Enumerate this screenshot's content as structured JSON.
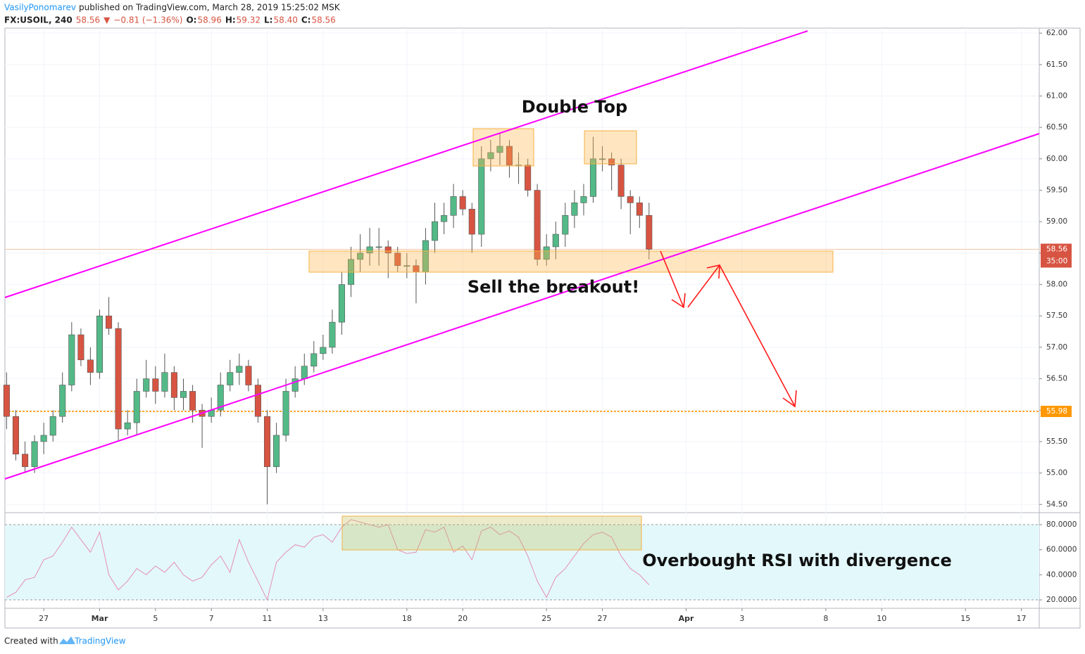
{
  "header": {
    "author": "VasilyPonomarev",
    "published": "published on TradingView.com, March 28, 2019 15:25:02 MSK",
    "quote": [
      "FX:USOIL, 240",
      "58.56",
      "▼",
      "−0.81 (−1.36%)",
      "O:",
      "58.96",
      "H:",
      "59.32",
      "L:",
      "58.40",
      "C:",
      "58.56"
    ]
  },
  "annotations": {
    "double_top": "Double Top",
    "sell": "Sell the breakout!",
    "rsi_note": "Overbought RSI with divergence"
  },
  "footer": {
    "created": "Created with",
    "brand": "TradingView"
  },
  "chart_data": [
    {
      "type": "candlestick",
      "up_color": "#53b987",
      "down_color": "#d75442",
      "xlim": [
        -1.39,
        35.64
      ],
      "ylim": [
        54.38,
        62.08
      ],
      "grid": true,
      "xticks": [
        {
          "value": 0,
          "label": "27"
        },
        {
          "value": 2,
          "label": "Mar"
        },
        {
          "value": 4,
          "label": "5"
        },
        {
          "value": 6,
          "label": "7"
        },
        {
          "value": 8,
          "label": "11"
        },
        {
          "value": 10,
          "label": "13"
        },
        {
          "value": 13,
          "label": "18"
        },
        {
          "value": 15,
          "label": "20"
        },
        {
          "value": 18,
          "label": "25"
        },
        {
          "value": 20,
          "label": "27"
        },
        {
          "value": 23,
          "label": "Apr"
        },
        {
          "value": 25,
          "label": "3"
        },
        {
          "value": 28,
          "label": "8"
        },
        {
          "value": 30,
          "label": "10"
        },
        {
          "value": 33,
          "label": "15"
        },
        {
          "value": 35,
          "label": "17"
        }
      ],
      "yticks": [
        {
          "value": 62,
          "label": "62.00"
        },
        {
          "value": 61.5,
          "label": "61.50"
        },
        {
          "value": 61,
          "label": "61.00"
        },
        {
          "value": 60.5,
          "label": "60.50"
        },
        {
          "value": 60,
          "label": "60.00"
        },
        {
          "value": 59.5,
          "label": "59.50"
        },
        {
          "value": 59,
          "label": "59.00"
        },
        {
          "value": 58.5,
          "label": "58.50"
        },
        {
          "value": 58,
          "label": "58.00"
        },
        {
          "value": 57.5,
          "label": "57.50"
        },
        {
          "value": 57,
          "label": "57.00"
        },
        {
          "value": 56.5,
          "label": "56.50"
        },
        {
          "value": 56,
          "label": "56.00"
        },
        {
          "value": 55.5,
          "label": "55.50"
        },
        {
          "value": 55,
          "label": "55.00"
        },
        {
          "value": 54.5,
          "label": "54.50"
        }
      ],
      "last_price": {
        "value": 58.56,
        "label": "58.56",
        "countdown": "35:00",
        "color": "#d75442"
      },
      "level": {
        "value": 55.98,
        "label": "55.98",
        "color": "#ff9800"
      },
      "x": [
        -1.33,
        -1,
        -0.67,
        -0.33,
        0,
        0.33,
        0.67,
        1,
        1.33,
        1.67,
        2,
        2.33,
        2.67,
        3,
        3.33,
        3.67,
        4,
        4.33,
        4.67,
        5,
        5.33,
        5.67,
        6,
        6.33,
        6.67,
        7,
        7.33,
        7.67,
        8,
        8.33,
        8.67,
        9,
        9.33,
        9.67,
        10,
        10.33,
        10.67,
        11,
        11.33,
        11.67,
        12,
        12.33,
        12.67,
        13,
        13.33,
        13.67,
        14,
        14.33,
        14.67,
        15,
        15.33,
        15.67,
        16,
        16.33,
        16.67,
        17,
        17.33,
        17.67,
        18,
        18.33,
        18.67,
        19,
        19.33,
        19.67,
        20,
        20.33,
        20.67,
        21,
        21.33,
        21.67
      ],
      "open": [
        56.4,
        55.9,
        55.3,
        55.1,
        55.5,
        55.6,
        55.9,
        56.4,
        57.2,
        56.8,
        56.6,
        57.5,
        57.3,
        55.7,
        55.8,
        56.3,
        56.5,
        56.3,
        56.6,
        56.2,
        56.3,
        56.0,
        55.9,
        56.0,
        56.4,
        56.6,
        56.7,
        56.4,
        55.9,
        55.1,
        55.6,
        56.3,
        56.5,
        56.7,
        56.9,
        57.0,
        57.4,
        58.0,
        58.4,
        58.5,
        58.6,
        58.6,
        58.5,
        58.3,
        58.3,
        58.2,
        58.7,
        59.0,
        59.1,
        59.4,
        59.2,
        58.8,
        60.0,
        60.1,
        60.2,
        59.9,
        59.9,
        59.5,
        58.4,
        58.6,
        58.8,
        59.1,
        59.3,
        59.4,
        60.0,
        60.0,
        59.9,
        59.4,
        59.3,
        59.1
      ],
      "high": [
        56.6,
        56.0,
        55.5,
        55.6,
        55.8,
        56.0,
        56.6,
        57.4,
        57.3,
        57.0,
        57.6,
        57.8,
        57.4,
        56.0,
        56.5,
        56.8,
        56.7,
        56.9,
        56.7,
        56.5,
        56.4,
        56.1,
        56.2,
        56.6,
        56.8,
        56.9,
        56.8,
        56.5,
        56.0,
        55.8,
        56.5,
        56.7,
        56.9,
        57.1,
        57.2,
        57.6,
        58.2,
        58.6,
        58.8,
        58.9,
        58.9,
        58.7,
        58.6,
        58.5,
        58.4,
        58.9,
        59.3,
        59.3,
        59.6,
        59.5,
        59.3,
        60.2,
        60.3,
        60.4,
        60.3,
        60.1,
        60.0,
        59.6,
        58.8,
        59.0,
        59.3,
        59.5,
        59.6,
        60.35,
        60.2,
        60.1,
        60.0,
        59.5,
        59.4,
        59.3
      ],
      "low": [
        55.7,
        55.2,
        55.0,
        55.0,
        55.3,
        55.5,
        55.8,
        56.3,
        56.7,
        56.4,
        56.5,
        57.2,
        55.5,
        55.6,
        55.6,
        56.2,
        56.1,
        56.2,
        56.0,
        56.0,
        55.8,
        55.4,
        55.8,
        55.9,
        56.3,
        56.4,
        56.3,
        55.8,
        54.5,
        55.0,
        55.5,
        56.2,
        56.4,
        56.6,
        56.8,
        56.9,
        57.2,
        57.8,
        58.2,
        58.3,
        58.3,
        58.1,
        58.2,
        58.1,
        57.7,
        58.0,
        58.5,
        58.8,
        58.9,
        59.1,
        58.5,
        58.6,
        59.8,
        59.9,
        59.7,
        59.6,
        59.4,
        58.3,
        58.3,
        58.4,
        58.6,
        58.9,
        59.1,
        59.3,
        59.8,
        59.5,
        59.2,
        58.8,
        58.9,
        58.4
      ],
      "close": [
        55.9,
        55.3,
        55.1,
        55.5,
        55.6,
        55.9,
        56.4,
        57.2,
        56.8,
        56.6,
        57.5,
        57.3,
        55.7,
        55.8,
        56.3,
        56.5,
        56.3,
        56.6,
        56.2,
        56.3,
        56.0,
        55.9,
        56.0,
        56.4,
        56.6,
        56.7,
        56.4,
        55.9,
        55.1,
        55.6,
        56.3,
        56.5,
        56.7,
        56.9,
        57.0,
        57.4,
        58.0,
        58.4,
        58.5,
        58.6,
        58.6,
        58.5,
        58.3,
        58.3,
        58.2,
        58.7,
        59.0,
        59.1,
        59.4,
        59.2,
        58.8,
        60.0,
        60.1,
        60.2,
        59.9,
        59.9,
        59.5,
        58.4,
        58.6,
        58.8,
        59.1,
        59.3,
        59.4,
        60.0,
        60.0,
        59.9,
        59.4,
        59.3,
        59.1,
        58.56
      ]
    },
    {
      "type": "line",
      "color": "#e58fb3",
      "band_color": "#e3f8fb",
      "xlim": [
        -1.39,
        35.64
      ],
      "ylim": [
        13.3,
        89.0
      ],
      "yticks": [
        {
          "value": 80,
          "label": "80.0000"
        },
        {
          "value": 60,
          "label": "60.0000"
        },
        {
          "value": 40,
          "label": "40.0000"
        },
        {
          "value": 20,
          "label": "20.0000"
        }
      ],
      "x": [
        -1.33,
        -1,
        -0.67,
        -0.33,
        0,
        0.33,
        0.67,
        1,
        1.33,
        1.67,
        2,
        2.33,
        2.67,
        3,
        3.33,
        3.67,
        4,
        4.33,
        4.67,
        5,
        5.33,
        5.67,
        6,
        6.33,
        6.67,
        7,
        7.33,
        7.67,
        8,
        8.33,
        8.67,
        9,
        9.33,
        9.67,
        10,
        10.33,
        10.67,
        11,
        11.33,
        11.67,
        12,
        12.33,
        12.67,
        13,
        13.33,
        13.67,
        14,
        14.33,
        14.67,
        15,
        15.33,
        15.67,
        16,
        16.33,
        16.67,
        17,
        17.33,
        17.67,
        18,
        18.33,
        18.67,
        19,
        19.33,
        19.67,
        20,
        20.33,
        20.67,
        21,
        21.33,
        21.67
      ],
      "values": [
        22,
        26,
        36,
        38,
        52,
        55,
        66,
        78,
        68,
        58,
        74,
        40,
        28,
        35,
        45,
        40,
        47,
        42,
        50,
        40,
        35,
        38,
        48,
        55,
        42,
        68,
        50,
        35,
        20,
        50,
        58,
        64,
        62,
        70,
        72,
        66,
        78,
        84,
        82,
        80,
        78,
        80,
        60,
        57,
        58,
        76,
        74,
        78,
        58,
        63,
        52,
        75,
        78,
        72,
        75,
        70,
        55,
        35,
        22,
        38,
        45,
        55,
        65,
        72,
        74,
        70,
        55,
        45,
        40,
        32
      ]
    }
  ]
}
